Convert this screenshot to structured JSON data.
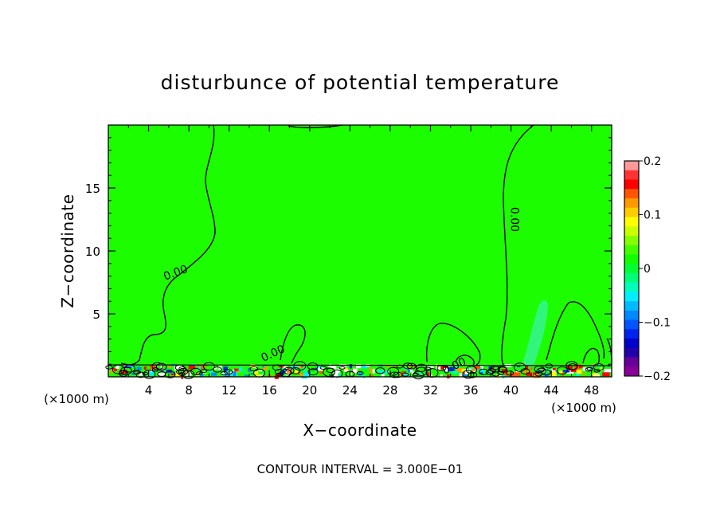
{
  "chart_data": {
    "type": "heatmap",
    "title": "disturbunce of potential temperature",
    "xlabel": "X−coordinate",
    "ylabel": "Z−coordinate",
    "x_unit_left": "(×1000 m)",
    "x_unit_right": "(×1000 m)",
    "xlim": [
      0,
      50
    ],
    "ylim": [
      0,
      20
    ],
    "xticks": [
      4,
      8,
      12,
      16,
      20,
      24,
      28,
      32,
      36,
      40,
      44,
      48
    ],
    "xtick_labels": [
      "4",
      "8",
      "12",
      "16",
      "20",
      "24",
      "28",
      "32",
      "36",
      "40",
      "44",
      "48"
    ],
    "yticks": [
      5,
      10,
      15
    ],
    "ytick_labels": [
      "5",
      "10",
      "15"
    ],
    "footer": "CONTOUR INTERVAL = 3.000E−01",
    "background_value": 0.0,
    "background_color": "#1cfe00",
    "contour_label": "0.00",
    "contour_labels": [
      {
        "x": 6.8,
        "z": 8.0,
        "text": "0.00"
      },
      {
        "x": 40.0,
        "z": 12.5,
        "text": "0.00"
      },
      {
        "x": 16.5,
        "z": 1.6,
        "text": "0.00"
      },
      {
        "x": 34.5,
        "z": 0.6,
        "text": "0.00"
      }
    ],
    "colorbar": {
      "range": [
        -0.2,
        0.2
      ],
      "tick_values": [
        0.2,
        0.1,
        0,
        -0.1,
        -0.2
      ],
      "tick_labels": [
        "0.2",
        "0.1",
        "0",
        "−0.1",
        "−0.2"
      ],
      "colors": [
        "#ff9999",
        "#ff3333",
        "#ff0000",
        "#ff5500",
        "#ff9900",
        "#ffcc00",
        "#ffff00",
        "#ccff00",
        "#88ff00",
        "#44ff00",
        "#11ff00",
        "#00ff33",
        "#00ff77",
        "#00ffbb",
        "#00eeff",
        "#00bbff",
        "#0088ff",
        "#0055ff",
        "#0022ee",
        "#0000cc",
        "#2200aa",
        "#660099",
        "#880099"
      ]
    },
    "anomalies": [
      {
        "x0": 40,
        "x1": 44,
        "z": 6,
        "value": -0.05,
        "color": "#36f591"
      }
    ]
  }
}
